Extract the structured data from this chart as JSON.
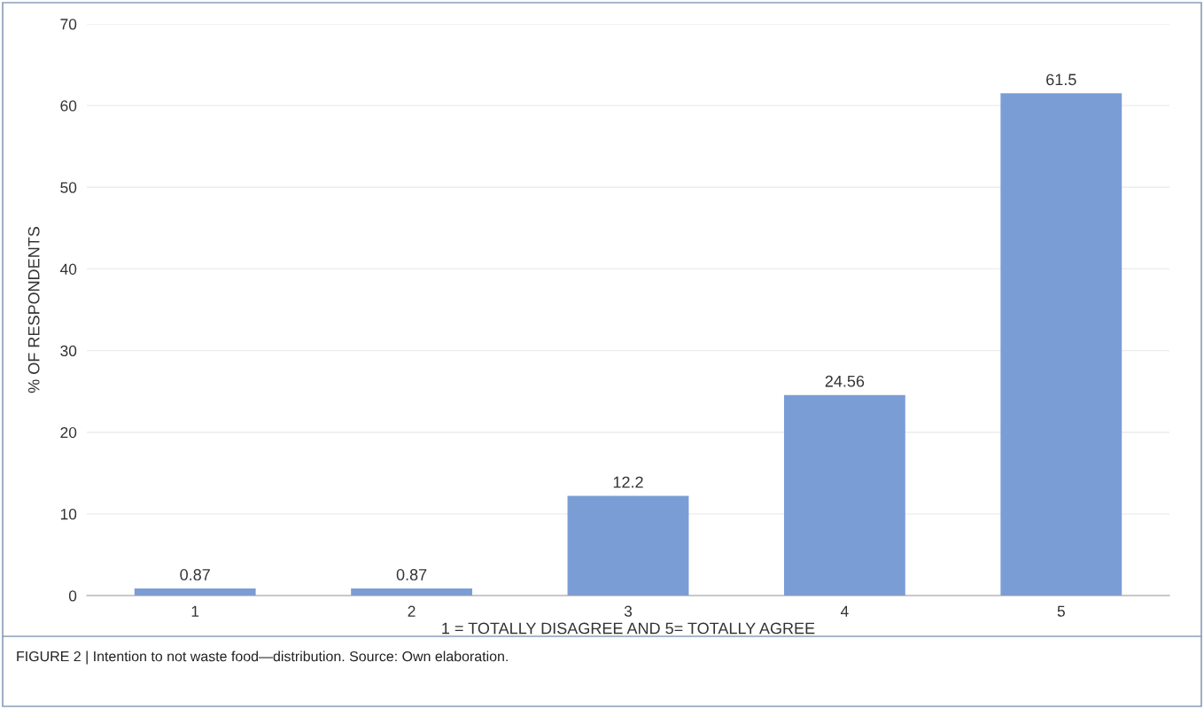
{
  "chart_data": {
    "type": "bar",
    "categories": [
      "1",
      "2",
      "3",
      "4",
      "5"
    ],
    "values": [
      0.87,
      0.87,
      12.2,
      24.56,
      61.5
    ],
    "color": "#7b9dd6",
    "xlabel": "1 = TOTALLY DISAGREE AND 5= TOTALLY AGREE",
    "ylabel": "% OF RESPONDENTS",
    "ylim": [
      0,
      70
    ],
    "yticks": [
      0,
      10,
      20,
      30,
      40,
      50,
      60,
      70
    ],
    "grid": "y",
    "legend": false,
    "data_labels": true,
    "annotations": [
      "FIGURE 2 | Intention to not waste food—distribution. Source: Own elaboration."
    ]
  }
}
